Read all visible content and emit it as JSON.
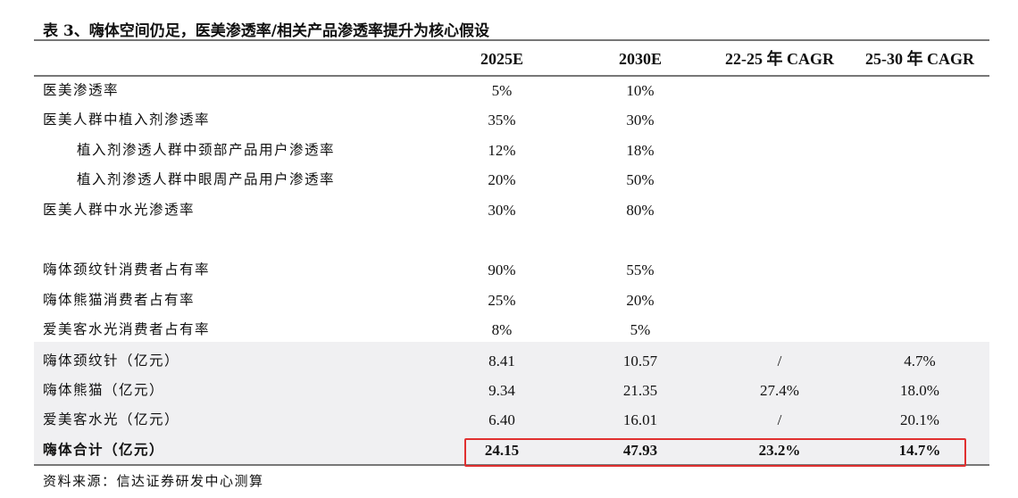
{
  "title": "表 3、嗨体空间仍足，医美渗透率/相关产品渗透率提升为核心假设",
  "columns": [
    "",
    "2025E",
    "2030E",
    "22-25 年 CAGR",
    "25-30 年 CAGR"
  ],
  "rows": [
    {
      "label": "医美渗透率",
      "v": [
        "5%",
        "10%",
        "",
        ""
      ]
    },
    {
      "label": "医美人群中植入剂渗透率",
      "v": [
        "35%",
        "30%",
        "",
        ""
      ]
    },
    {
      "label": "植入剂渗透人群中颈部产品用户渗透率",
      "v": [
        "12%",
        "18%",
        "",
        ""
      ]
    },
    {
      "label": "植入剂渗透人群中眼周产品用户渗透率",
      "v": [
        "20%",
        "50%",
        "",
        ""
      ]
    },
    {
      "label": "医美人群中水光渗透率",
      "v": [
        "30%",
        "80%",
        "",
        ""
      ]
    },
    {
      "label": "嗨体颈纹针消费者占有率",
      "v": [
        "90%",
        "55%",
        "",
        ""
      ]
    },
    {
      "label": "嗨体熊猫消费者占有率",
      "v": [
        "25%",
        "20%",
        "",
        ""
      ]
    },
    {
      "label": "爱美客水光消费者占有率",
      "v": [
        "8%",
        "5%",
        "",
        ""
      ]
    },
    {
      "label": "嗨体颈纹针（亿元）",
      "v": [
        "8.41",
        "10.57",
        "/",
        "4.7%"
      ]
    },
    {
      "label": "嗨体熊猫（亿元）",
      "v": [
        "9.34",
        "21.35",
        "27.4%",
        "18.0%"
      ]
    },
    {
      "label": "爱美客水光（亿元）",
      "v": [
        "6.40",
        "16.01",
        "/",
        "20.1%"
      ]
    },
    {
      "label": "嗨体合计（亿元）",
      "v": [
        "24.15",
        "47.93",
        "23.2%",
        "14.7%"
      ]
    }
  ],
  "source": "资料来源：信达证券研发中心测算",
  "highlight_color": "#e03030"
}
